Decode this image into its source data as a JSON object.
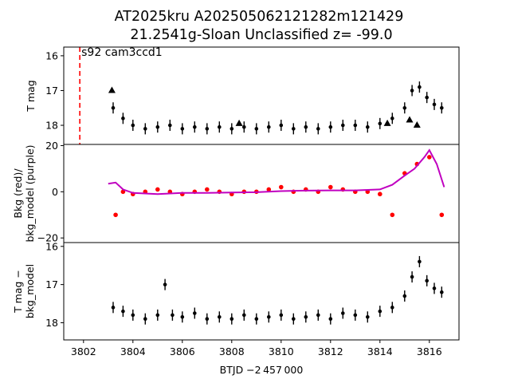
{
  "title_line1": "AT2025kru  A202505062121282m121429",
  "title_line2": "21.2541g-Sloan Unclassified z= -99.0",
  "chart_data": [
    {
      "type": "scatter",
      "panel": "top",
      "ylabel": "T mag",
      "annotation": "s92 cam3ccd1",
      "marker_line_x": 3801.85,
      "xlim": [
        3801.2,
        3817.2
      ],
      "ylim": [
        18.55,
        15.75
      ],
      "yticks": [
        16,
        17,
        18
      ],
      "series": [
        {
          "color": "#000000",
          "marker": "circle",
          "x": [
            3803.2,
            3803.6,
            3804.0,
            3804.5,
            3805.0,
            3805.5,
            3806.0,
            3806.5,
            3807.0,
            3807.5,
            3808.0,
            3808.5,
            3809.0,
            3809.5,
            3810.0,
            3810.5,
            3811.0,
            3811.5,
            3812.0,
            3812.5,
            3813.0,
            3813.5,
            3814.0,
            3814.5,
            3815.0,
            3815.3,
            3815.6,
            3815.9,
            3816.2,
            3816.5
          ],
          "y": [
            17.5,
            17.8,
            18.0,
            18.1,
            18.05,
            18.0,
            18.1,
            18.05,
            18.1,
            18.05,
            18.1,
            18.05,
            18.1,
            18.05,
            18.0,
            18.1,
            18.05,
            18.1,
            18.05,
            18.0,
            18.0,
            18.05,
            17.95,
            17.8,
            17.5,
            17.0,
            16.9,
            17.2,
            17.4,
            17.5
          ]
        },
        {
          "color": "#000000",
          "marker": "triangle",
          "x": [
            3803.15,
            3808.3,
            3814.3,
            3815.2,
            3815.5
          ],
          "y": [
            17.0,
            17.95,
            17.95,
            17.85,
            18.0
          ]
        }
      ]
    },
    {
      "type": "scatter",
      "panel": "middle",
      "ylabel": "Bkg (red)/\nbkg_model (purple)",
      "xlim": [
        3801.2,
        3817.2
      ],
      "ylim": [
        -22,
        20.5
      ],
      "yticks": [
        -20,
        0,
        20
      ],
      "series": [
        {
          "color": "#ff0000",
          "marker": "point",
          "x": [
            3803.3,
            3803.6,
            3804.0,
            3804.5,
            3805.0,
            3805.5,
            3806.0,
            3806.5,
            3807.0,
            3807.5,
            3808.0,
            3808.5,
            3809.0,
            3809.5,
            3810.0,
            3810.5,
            3811.0,
            3811.5,
            3812.0,
            3812.5,
            3813.0,
            3813.5,
            3814.0,
            3814.5,
            3815.0,
            3815.5,
            3816.0,
            3816.5
          ],
          "y": [
            -10,
            0,
            -1,
            0,
            1,
            0,
            -1,
            0,
            1,
            0,
            -1,
            0,
            0,
            1,
            2,
            0,
            1,
            0,
            2,
            1,
            0,
            0,
            -1,
            -10,
            8,
            12,
            15,
            -10
          ]
        },
        {
          "color": "#c000c0",
          "marker": "line",
          "x": [
            3803.0,
            3803.3,
            3803.6,
            3804.0,
            3805.0,
            3806.0,
            3807.0,
            3808.0,
            3809.0,
            3810.0,
            3811.0,
            3812.0,
            3813.0,
            3814.0,
            3814.5,
            3815.0,
            3815.4,
            3815.8,
            3816.0,
            3816.3,
            3816.6
          ],
          "y": [
            3.5,
            4.0,
            1.0,
            -0.5,
            -1.0,
            -0.5,
            -0.5,
            -0.3,
            -0.2,
            0.3,
            0.5,
            0.6,
            0.6,
            1.0,
            3.0,
            7.0,
            10.0,
            15.0,
            18.0,
            12.0,
            2.0
          ]
        }
      ]
    },
    {
      "type": "scatter",
      "panel": "bottom",
      "ylabel": "T mag −\nbkg_model",
      "xlabel": "BTJD −2 457 000",
      "xlim": [
        3801.2,
        3817.2
      ],
      "ylim": [
        18.45,
        15.9
      ],
      "yticks": [
        16,
        17,
        18
      ],
      "xticks": [
        3802,
        3804,
        3806,
        3808,
        3810,
        3812,
        3814,
        3816
      ],
      "series": [
        {
          "color": "#000000",
          "marker": "circle",
          "x": [
            3803.2,
            3803.6,
            3804.0,
            3804.5,
            3805.0,
            3805.3,
            3805.6,
            3806.0,
            3806.5,
            3807.0,
            3807.5,
            3808.0,
            3808.5,
            3809.0,
            3809.5,
            3810.0,
            3810.5,
            3811.0,
            3811.5,
            3812.0,
            3812.5,
            3813.0,
            3813.5,
            3814.0,
            3814.5,
            3815.0,
            3815.3,
            3815.6,
            3815.9,
            3816.2,
            3816.5
          ],
          "y": [
            17.6,
            17.7,
            17.8,
            17.9,
            17.8,
            17.0,
            17.8,
            17.85,
            17.75,
            17.9,
            17.85,
            17.9,
            17.8,
            17.9,
            17.85,
            17.8,
            17.9,
            17.85,
            17.8,
            17.9,
            17.75,
            17.8,
            17.85,
            17.7,
            17.6,
            17.3,
            16.8,
            16.4,
            16.9,
            17.1,
            17.2
          ]
        }
      ]
    }
  ]
}
